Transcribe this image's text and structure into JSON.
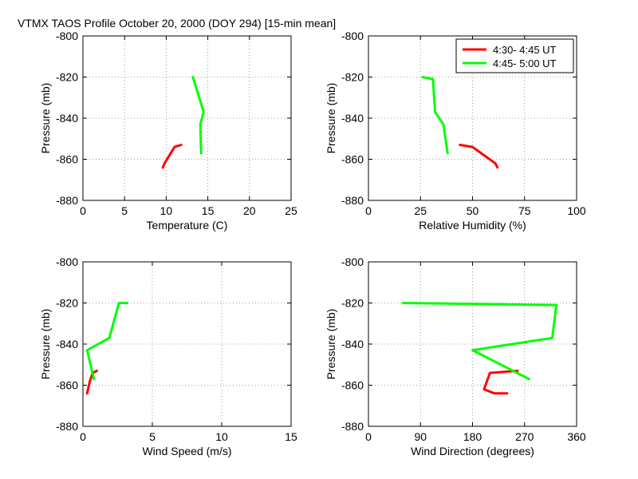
{
  "title": "VTMX TAOS Profile   October 20, 2000 (DOY 294) [15-min mean]",
  "legend": [
    {
      "label": "4:30- 4:45 UT",
      "color": "#ff0000"
    },
    {
      "label": "4:45- 5:00 UT",
      "color": "#00ff00"
    }
  ],
  "chart_data": [
    {
      "type": "line",
      "xlabel": "Temperature (C)",
      "ylabel": "Pressure (mb)",
      "xlim": [
        0,
        25
      ],
      "ylim": [
        -880,
        -800
      ],
      "xticks": [
        0,
        5,
        10,
        15,
        20,
        25
      ],
      "yticks": [
        -880,
        -860,
        -840,
        -820,
        -800
      ],
      "grid": true,
      "series": [
        {
          "name": "4:30- 4:45 UT",
          "color": "#ff0000",
          "points": [
            [
              11.8,
              -853
            ],
            [
              11.0,
              -854
            ],
            [
              9.8,
              -862
            ],
            [
              9.6,
              -864
            ]
          ]
        },
        {
          "name": "4:45- 5:00 UT",
          "color": "#00ff00",
          "points": [
            [
              13.2,
              -820
            ],
            [
              14.5,
              -837
            ],
            [
              14.1,
              -843
            ],
            [
              14.2,
              -857
            ]
          ]
        }
      ]
    },
    {
      "type": "line",
      "xlabel": "Relative Humidity (%)",
      "ylabel": "Pressure (mb)",
      "xlim": [
        0,
        100
      ],
      "ylim": [
        -880,
        -800
      ],
      "xticks": [
        0,
        25,
        50,
        75,
        100
      ],
      "yticks": [
        -880,
        -860,
        -840,
        -820,
        -800
      ],
      "grid": true,
      "series": [
        {
          "name": "4:30- 4:45 UT",
          "color": "#ff0000",
          "points": [
            [
              44,
              -853
            ],
            [
              50,
              -854
            ],
            [
              61,
              -862
            ],
            [
              62,
              -864
            ]
          ]
        },
        {
          "name": "4:45- 5:00 UT",
          "color": "#00ff00",
          "points": [
            [
              26,
              -820
            ],
            [
              31,
              -821
            ],
            [
              32,
              -837
            ],
            [
              36,
              -843
            ],
            [
              38,
              -857
            ]
          ]
        }
      ]
    },
    {
      "type": "line",
      "xlabel": "Wind Speed (m/s)",
      "ylabel": "Pressure (mb)",
      "xlim": [
        0,
        15
      ],
      "ylim": [
        -880,
        -800
      ],
      "xticks": [
        0,
        5,
        10,
        15
      ],
      "yticks": [
        -880,
        -860,
        -840,
        -820,
        -800
      ],
      "grid": true,
      "series": [
        {
          "name": "4:30- 4:45 UT",
          "color": "#ff0000",
          "points": [
            [
              1.0,
              -853
            ],
            [
              0.7,
              -854
            ],
            [
              0.5,
              -858
            ],
            [
              0.3,
              -864
            ]
          ]
        },
        {
          "name": "4:45- 5:00 UT",
          "color": "#00ff00",
          "points": [
            [
              3.2,
              -820
            ],
            [
              2.6,
              -820
            ],
            [
              1.9,
              -837
            ],
            [
              0.3,
              -843
            ],
            [
              0.8,
              -857
            ]
          ]
        }
      ]
    },
    {
      "type": "line",
      "xlabel": "Wind Direction (degrees)",
      "ylabel": "Pressure (mb)",
      "xlim": [
        0,
        360
      ],
      "ylim": [
        -880,
        -800
      ],
      "xticks": [
        0,
        90,
        180,
        270,
        360
      ],
      "yticks": [
        -880,
        -860,
        -840,
        -820,
        -800
      ],
      "grid": true,
      "series": [
        {
          "name": "4:30- 4:45 UT",
          "color": "#ff0000",
          "points": [
            [
              258,
              -853
            ],
            [
              210,
              -854
            ],
            [
              200,
              -862
            ],
            [
              218,
              -864
            ],
            [
              240,
              -864
            ]
          ]
        },
        {
          "name": "4:45- 5:00 UT",
          "color": "#00ff00",
          "points": [
            [
              60,
              -820
            ],
            [
              325,
              -821
            ],
            [
              318,
              -837
            ],
            [
              180,
              -843
            ],
            [
              278,
              -857
            ]
          ]
        }
      ]
    }
  ]
}
